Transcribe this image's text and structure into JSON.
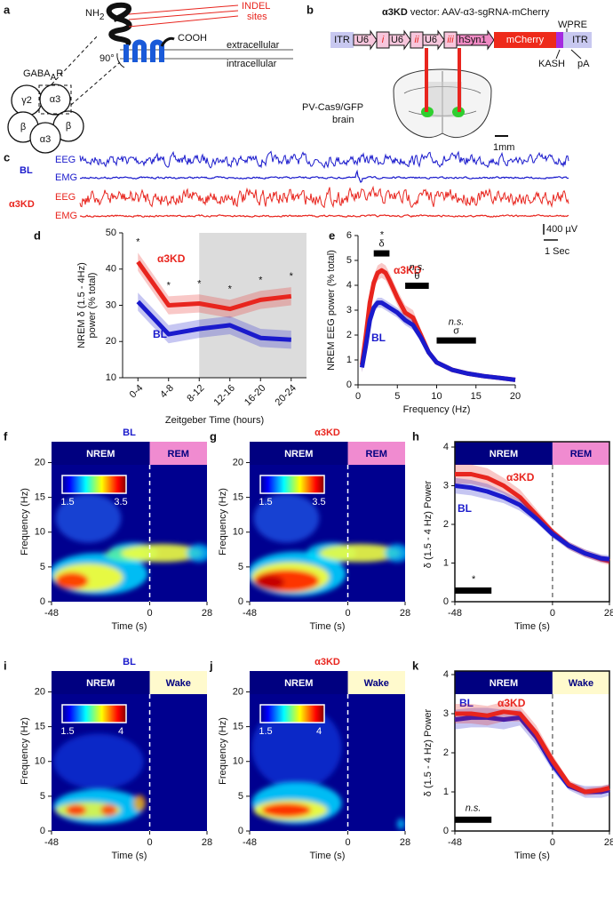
{
  "diagram_a": {
    "panel": "a",
    "n_terminus": [
      "NH",
      "2"
    ],
    "c_terminus": "COOH",
    "indel": [
      "INDEL",
      "sites"
    ],
    "extracellular": "extracellular",
    "intracellular": "intracellular",
    "angle": "90°",
    "receptor": [
      "GABA",
      "A",
      "R"
    ],
    "subunits": [
      "γ2",
      "α3",
      "β",
      "β",
      "α3"
    ]
  },
  "diagram_b": {
    "panel": "b",
    "title": [
      "α3KD",
      " vector: AAV-α3-sgRNA-mCherry"
    ],
    "elements": [
      "ITR",
      "U6",
      "i",
      "U6",
      "ii",
      "U6",
      "iii",
      "hSyn1",
      "mCherry",
      "ITR"
    ],
    "wpre": "WPRE",
    "kash": "KASH",
    "pa": "pA",
    "brain": [
      "PV-Cas9/GFP",
      "brain"
    ],
    "scale": "1mm"
  },
  "traces_c": {
    "panel": "c",
    "groups": [
      {
        "name": "BL",
        "color": "#1a1acc",
        "channels": [
          "EEG",
          "EMG"
        ]
      },
      {
        "name": "α3KD",
        "color": "#e8251e",
        "channels": [
          "EEG",
          "EMG"
        ]
      }
    ],
    "scale_v": "400 µV",
    "scale_t": "1 Sec"
  },
  "chart_data": [
    {
      "panel": "d",
      "type": "line",
      "categories": [
        "0-4",
        "4-8",
        "8-12",
        "12-16",
        "16-20",
        "20-24"
      ],
      "xlabel": "Zeitgeber Time (hours)",
      "ylabel": [
        "NREM δ (1.5 - 4Hz)",
        "power (% total)"
      ],
      "ylim": [
        10,
        50
      ],
      "yticks": [
        10,
        20,
        30,
        40,
        50
      ],
      "shade_from": 3,
      "shade_color": "#dcdcdc",
      "series": [
        {
          "name": "α3KD",
          "color": "#e8251e",
          "values": [
            42,
            30,
            30.5,
            29,
            31.5,
            32.5
          ],
          "errors": [
            2.5,
            2.5,
            2.5,
            2.5,
            2.5,
            2.5
          ]
        },
        {
          "name": "BL",
          "color": "#1a1acc",
          "values": [
            31,
            22,
            23.5,
            24.5,
            21,
            20.5
          ],
          "errors": [
            2.5,
            2.5,
            2.5,
            2.5,
            2.5,
            2.5
          ]
        }
      ],
      "significance": [
        "*",
        "*",
        "*",
        "*",
        "*",
        "*"
      ]
    },
    {
      "panel": "e",
      "type": "line",
      "x": [
        0.5,
        1,
        1.5,
        2,
        2.5,
        3,
        3.5,
        4,
        5,
        6,
        7,
        8,
        9,
        10,
        12,
        14,
        16,
        18,
        20
      ],
      "xlim": [
        0,
        20
      ],
      "xticks": [
        0,
        5,
        10,
        15,
        20
      ],
      "ylim": [
        0,
        6
      ],
      "yticks": [
        0,
        1,
        2,
        3,
        4,
        5,
        6
      ],
      "xlabel": "Frequency (Hz)",
      "ylabel": "NREM EEG power (% total)",
      "series": [
        {
          "name": "α3KD",
          "color": "#e8251e",
          "values": [
            0.8,
            2.0,
            3.3,
            4.1,
            4.5,
            4.6,
            4.5,
            4.2,
            3.5,
            2.9,
            2.7,
            2.0,
            1.3,
            0.9,
            0.6,
            0.45,
            0.35,
            0.28,
            0.2
          ],
          "errors": [
            0.3,
            0.3,
            0.3,
            0.3,
            0.3,
            0.3,
            0.3,
            0.3,
            0.3,
            0.3,
            0.3,
            0.2,
            0.15,
            0.1,
            0.1,
            0.05,
            0.05,
            0.05,
            0.05
          ]
        },
        {
          "name": "BL",
          "color": "#1a1acc",
          "values": [
            0.7,
            1.6,
            2.6,
            3.1,
            3.3,
            3.3,
            3.2,
            3.1,
            2.9,
            2.6,
            2.4,
            1.9,
            1.3,
            0.9,
            0.6,
            0.45,
            0.35,
            0.28,
            0.2
          ],
          "errors": [
            0.2,
            0.2,
            0.2,
            0.2,
            0.2,
            0.2,
            0.2,
            0.2,
            0.2,
            0.2,
            0.2,
            0.15,
            0.1,
            0.1,
            0.05,
            0.05,
            0.05,
            0.05,
            0.05
          ]
        }
      ],
      "bands": [
        {
          "label": "*",
          "symbol": "δ",
          "from": 2,
          "to": 4,
          "y": 5.3
        },
        {
          "label": "n.s.",
          "symbol": "θ",
          "from": 6,
          "to": 9,
          "y": 4.0
        },
        {
          "label": "n.s.",
          "symbol": "σ",
          "from": 10,
          "to": 15,
          "y": 1.8
        }
      ]
    },
    {
      "panel": "f",
      "type": "heatmap",
      "title": "BL",
      "title_color": "#1a1acc",
      "xlim": [
        -48,
        28
      ],
      "xticks": [
        -48,
        0,
        28
      ],
      "ylim": [
        0,
        23
      ],
      "yticks": [
        0,
        5,
        10,
        15,
        20
      ],
      "xlabel": "Time (s)",
      "ylabel": "Frequency (Hz)",
      "states": [
        {
          "name": "NREM",
          "from": -48,
          "to": 0,
          "color": "#000080",
          "text_color": "#ffffff"
        },
        {
          "name": "REM",
          "from": 0,
          "to": 28,
          "color": "#f08bd0",
          "text_color": "#000080"
        }
      ],
      "colorbar": [
        1.5,
        3.5
      ]
    },
    {
      "panel": "g",
      "type": "heatmap",
      "title": "α3KD",
      "title_color": "#e8251e",
      "xlim": [
        -48,
        28
      ],
      "xticks": [
        -48,
        0,
        28
      ],
      "ylim": [
        0,
        23
      ],
      "yticks": [
        0,
        5,
        10,
        15,
        20
      ],
      "xlabel": "Time (s)",
      "ylabel": "Frequency (Hz)",
      "states": [
        {
          "name": "NREM",
          "from": -48,
          "to": 0,
          "color": "#000080",
          "text_color": "#ffffff"
        },
        {
          "name": "REM",
          "from": 0,
          "to": 28,
          "color": "#f08bd0",
          "text_color": "#000080"
        }
      ],
      "colorbar": [
        1.5,
        3.5
      ]
    },
    {
      "panel": "h",
      "type": "line",
      "x": [
        -48,
        -40,
        -32,
        -24,
        -16,
        -8,
        0,
        8,
        16,
        24,
        28
      ],
      "xlim": [
        -48,
        28
      ],
      "xticks": [
        -48,
        0,
        28
      ],
      "ylim": [
        0,
        4
      ],
      "yticks": [
        0,
        1,
        2,
        3,
        4
      ],
      "xlabel": "Time (s)",
      "ylabel": "δ (1.5 - 4 Hz) Power",
      "frame": true,
      "states": [
        {
          "name": "NREM",
          "from": -48,
          "to": 0,
          "color": "#000080",
          "text_color": "#ffffff"
        },
        {
          "name": "REM",
          "from": 0,
          "to": 28,
          "color": "#f08bd0",
          "text_color": "#000080"
        }
      ],
      "series": [
        {
          "name": "α3KD",
          "color": "#e8251e",
          "values": [
            3.3,
            3.3,
            3.2,
            3.0,
            2.7,
            2.25,
            1.8,
            1.45,
            1.25,
            1.1,
            1.05
          ],
          "errors": [
            0.25,
            0.25,
            0.25,
            0.2,
            0.2,
            0.15,
            0.1,
            0.1,
            0.1,
            0.1,
            0.1
          ]
        },
        {
          "name": "BL",
          "color": "#1a1acc",
          "values": [
            3.0,
            2.95,
            2.85,
            2.7,
            2.5,
            2.15,
            1.75,
            1.45,
            1.25,
            1.12,
            1.1
          ],
          "errors": [
            0.2,
            0.2,
            0.2,
            0.15,
            0.15,
            0.1,
            0.1,
            0.1,
            0.1,
            0.1,
            0.1
          ]
        }
      ],
      "bands": [
        {
          "label": "*",
          "from": -48,
          "to": -30,
          "y": 0.3
        }
      ]
    },
    {
      "panel": "i",
      "type": "heatmap",
      "title": "BL",
      "title_color": "#1a1acc",
      "xlim": [
        -48,
        28
      ],
      "xticks": [
        -48,
        0,
        28
      ],
      "ylim": [
        0,
        23
      ],
      "yticks": [
        0,
        5,
        10,
        15,
        20
      ],
      "xlabel": "Time (s)",
      "ylabel": "Frequency (Hz)",
      "states": [
        {
          "name": "NREM",
          "from": -48,
          "to": 0,
          "color": "#000080",
          "text_color": "#ffffff"
        },
        {
          "name": "Wake",
          "from": 0,
          "to": 28,
          "color": "#fffacd",
          "text_color": "#000080"
        }
      ],
      "colorbar": [
        1.5,
        4
      ]
    },
    {
      "panel": "j",
      "type": "heatmap",
      "title": "α3KD",
      "title_color": "#e8251e",
      "xlim": [
        -48,
        28
      ],
      "xticks": [
        -48,
        0,
        28
      ],
      "ylim": [
        0,
        23
      ],
      "yticks": [
        0,
        5,
        10,
        15,
        20
      ],
      "xlabel": "Time (s)",
      "ylabel": "Frequency (Hz)",
      "states": [
        {
          "name": "NREM",
          "from": -48,
          "to": 0,
          "color": "#000080",
          "text_color": "#ffffff"
        },
        {
          "name": "Wake",
          "from": 0,
          "to": 28,
          "color": "#fffacd",
          "text_color": "#000080"
        }
      ],
      "colorbar": [
        1.5,
        4
      ]
    },
    {
      "panel": "k",
      "type": "line",
      "x": [
        -48,
        -40,
        -32,
        -24,
        -16,
        -8,
        0,
        8,
        16,
        24,
        28
      ],
      "xlim": [
        -48,
        28
      ],
      "xticks": [
        -48,
        0,
        28
      ],
      "ylim": [
        0,
        4
      ],
      "yticks": [
        0,
        1,
        2,
        3,
        4
      ],
      "xlabel": "Time (s)",
      "ylabel": "δ (1.5 - 4 Hz) Power",
      "frame": true,
      "states": [
        {
          "name": "NREM",
          "from": -48,
          "to": 0,
          "color": "#000080",
          "text_color": "#ffffff"
        },
        {
          "name": "Wake",
          "from": 0,
          "to": 28,
          "color": "#fffacd",
          "text_color": "#000080"
        }
      ],
      "series": [
        {
          "name": "BL",
          "color": "#1a1acc",
          "values": [
            2.85,
            2.9,
            2.9,
            2.85,
            2.9,
            2.4,
            1.7,
            1.15,
            1.0,
            1.0,
            1.05
          ],
          "errors": [
            0.25,
            0.25,
            0.25,
            0.25,
            0.2,
            0.2,
            0.15,
            0.1,
            0.15,
            0.15,
            0.15
          ]
        },
        {
          "name": "α3KD",
          "color": "#e8251e",
          "values": [
            3.0,
            3.0,
            2.95,
            3.05,
            3.0,
            2.5,
            1.8,
            1.2,
            1.0,
            1.05,
            1.1
          ],
          "errors": [
            0.25,
            0.25,
            0.25,
            0.25,
            0.2,
            0.2,
            0.15,
            0.1,
            0.1,
            0.1,
            0.1
          ]
        }
      ],
      "bands": [
        {
          "label": "n.s.",
          "from": -48,
          "to": -30,
          "y": 0.3
        }
      ]
    }
  ]
}
